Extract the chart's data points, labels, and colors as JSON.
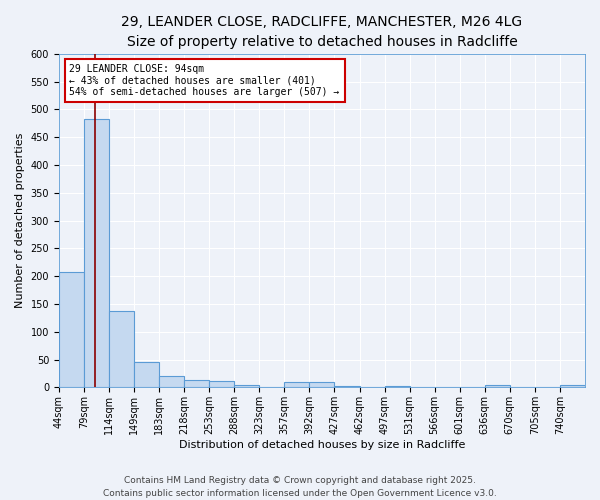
{
  "title_line1": "29, LEANDER CLOSE, RADCLIFFE, MANCHESTER, M26 4LG",
  "title_line2": "Size of property relative to detached houses in Radcliffe",
  "xlabel": "Distribution of detached houses by size in Radcliffe",
  "ylabel": "Number of detached properties",
  "bin_labels": [
    "44sqm",
    "79sqm",
    "114sqm",
    "149sqm",
    "183sqm",
    "218sqm",
    "253sqm",
    "288sqm",
    "323sqm",
    "357sqm",
    "392sqm",
    "427sqm",
    "462sqm",
    "497sqm",
    "531sqm",
    "566sqm",
    "601sqm",
    "636sqm",
    "670sqm",
    "705sqm",
    "740sqm"
  ],
  "bar_values": [
    207,
    483,
    137,
    45,
    21,
    14,
    12,
    4,
    0,
    9,
    9,
    3,
    1,
    2,
    1,
    1,
    0,
    4,
    0,
    1,
    4
  ],
  "bar_color": "#c5d9f0",
  "bar_edge_color": "#5b9bd5",
  "bar_edge_width": 0.8,
  "red_line_color": "#8b0000",
  "annotation_title": "29 LEANDER CLOSE: 94sqm",
  "annotation_line1": "← 43% of detached houses are smaller (401)",
  "annotation_line2": "54% of semi-detached houses are larger (507) →",
  "annotation_box_color": "#ffffff",
  "annotation_box_edge_color": "#cc0000",
  "ylim": [
    0,
    600
  ],
  "yticks": [
    0,
    50,
    100,
    150,
    200,
    250,
    300,
    350,
    400,
    450,
    500,
    550,
    600
  ],
  "background_color": "#eef2f9",
  "grid_color": "#ffffff",
  "footer_line1": "Contains HM Land Registry data © Crown copyright and database right 2025.",
  "footer_line2": "Contains public sector information licensed under the Open Government Licence v3.0.",
  "title_fontsize": 10,
  "subtitle_fontsize": 9,
  "axis_label_fontsize": 8,
  "tick_fontsize": 7,
  "annotation_fontsize": 7,
  "footer_fontsize": 6.5
}
